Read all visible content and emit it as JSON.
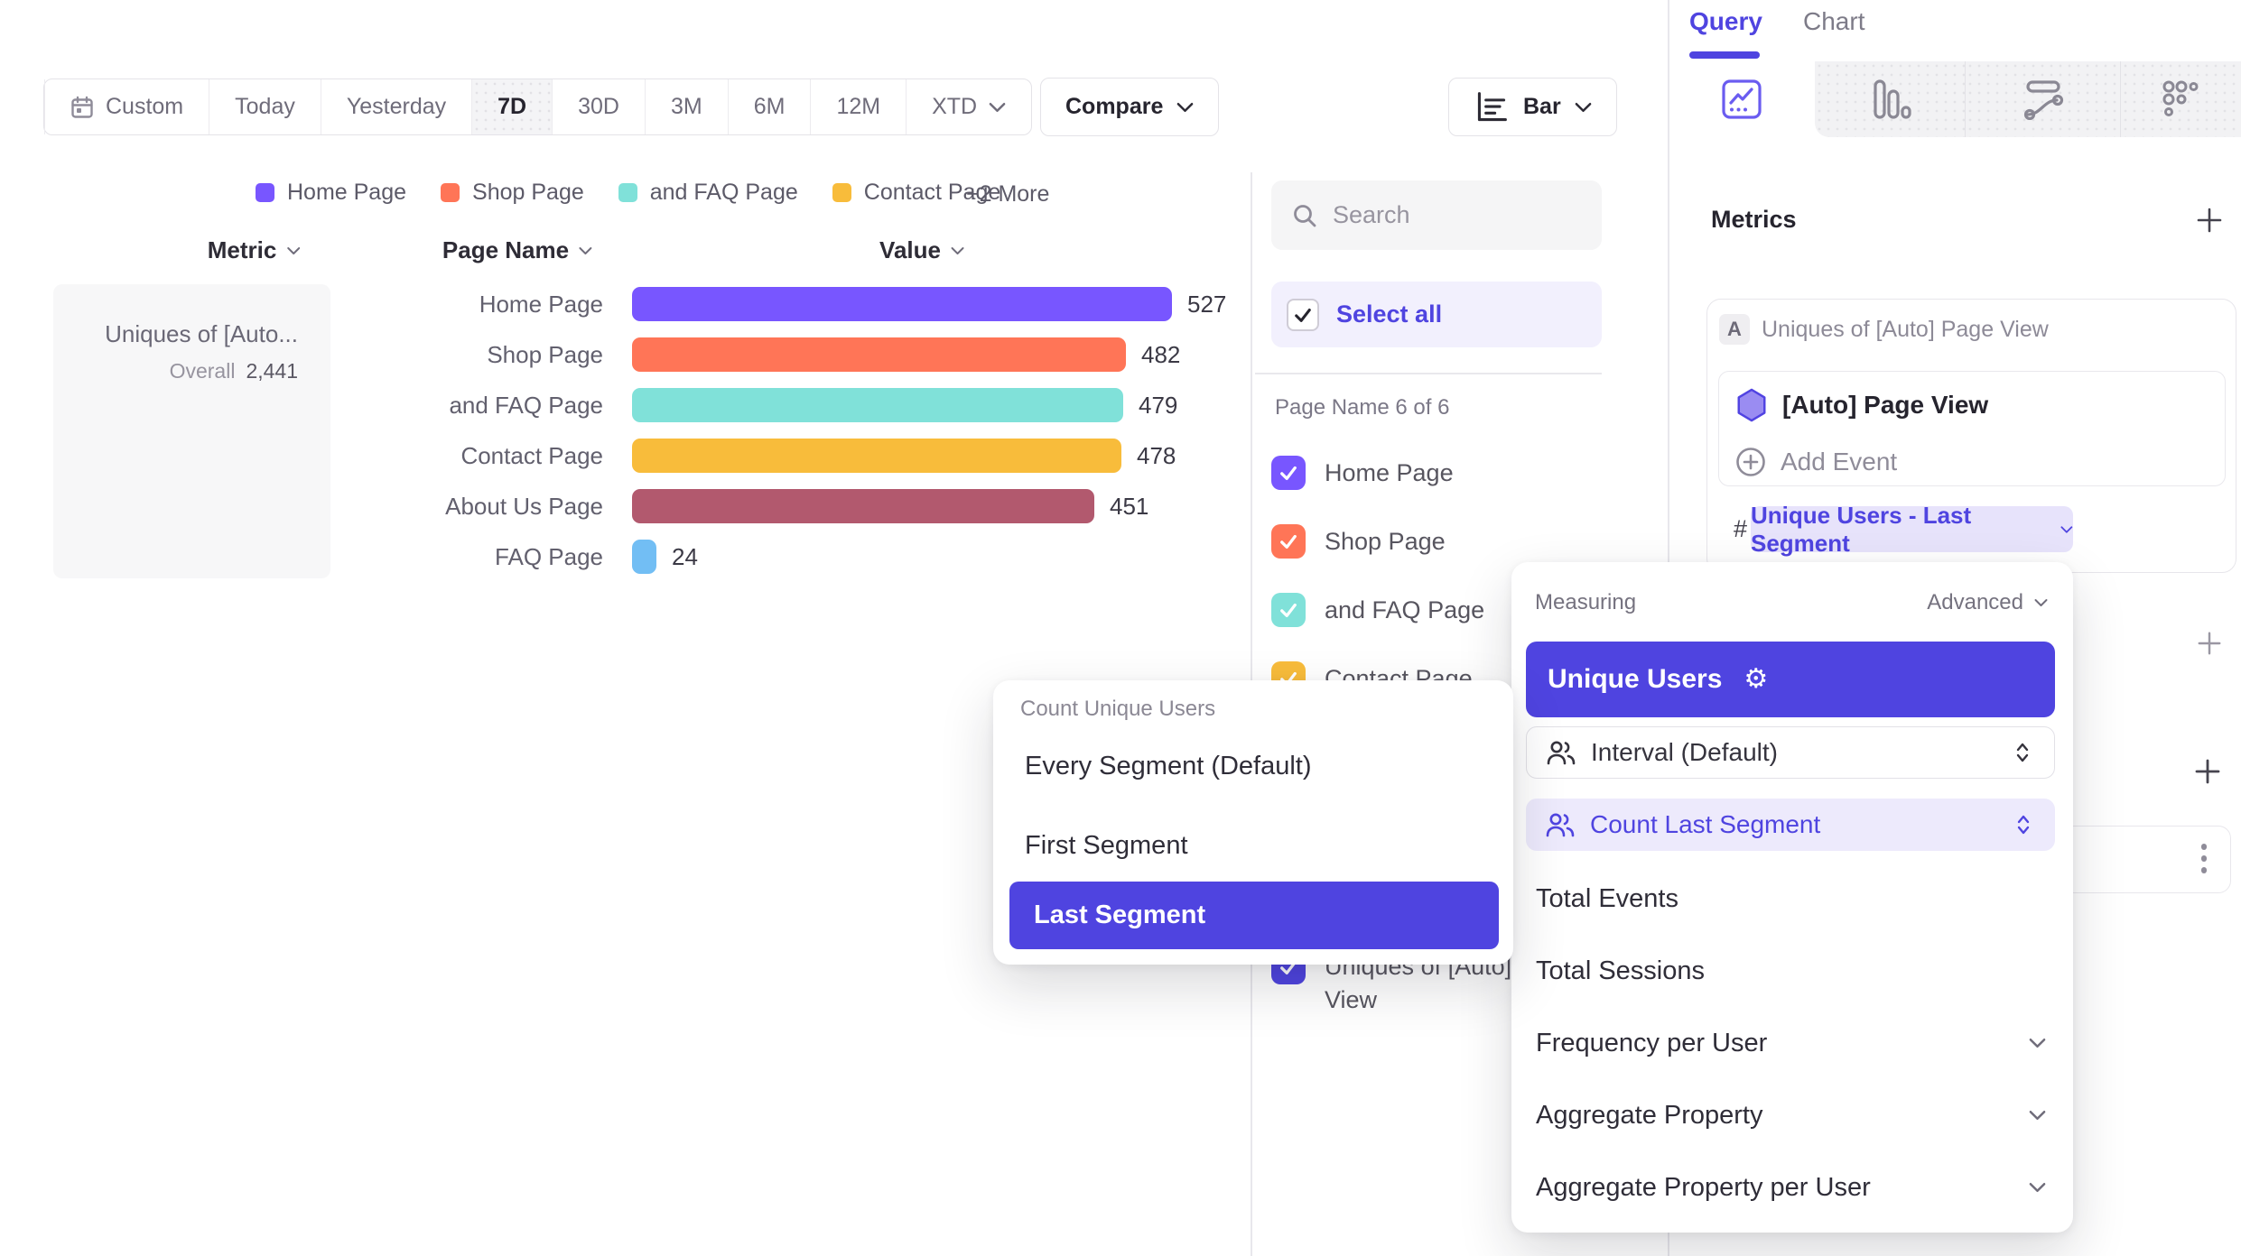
{
  "toolbar": {
    "date_ranges": [
      {
        "label": "Custom",
        "icon": "calendar",
        "active": false
      },
      {
        "label": "Today",
        "active": false
      },
      {
        "label": "Yesterday",
        "active": false
      },
      {
        "label": "7D",
        "active": true
      },
      {
        "label": "30D",
        "active": false
      },
      {
        "label": "3M",
        "active": false
      },
      {
        "label": "6M",
        "active": false
      },
      {
        "label": "12M",
        "active": false
      },
      {
        "label": "XTD",
        "chevron": true,
        "active": false
      }
    ],
    "compare_label": "Compare",
    "chart_type_button_label": "Bar"
  },
  "legend": {
    "items": [
      {
        "label": "Home Page",
        "color": "#7856FF"
      },
      {
        "label": "Shop Page",
        "color": "#FF7557"
      },
      {
        "label": "and FAQ Page",
        "color": "#80E1D9"
      },
      {
        "label": "Contact Page",
        "color": "#F8BC3B"
      }
    ],
    "more_label": "+2 More"
  },
  "table": {
    "columns": {
      "metric": "Metric",
      "page_name": "Page Name",
      "value": "Value"
    },
    "metric_cell": {
      "title": "Uniques of [Auto...",
      "overall_label": "Overall",
      "overall_value": "2,441"
    }
  },
  "chart_data": {
    "type": "bar",
    "orientation": "horizontal",
    "title": "",
    "categories": [
      "Home Page",
      "Shop Page",
      "and FAQ Page",
      "Contact Page",
      "About Us Page",
      "FAQ Page"
    ],
    "values": [
      527,
      482,
      479,
      478,
      451,
      24
    ],
    "colors": [
      "#7856FF",
      "#FF7557",
      "#80E1D9",
      "#F8BC3B",
      "#B2596E",
      "#72BEF4"
    ],
    "metric": "Uniques of [Auto] Page View",
    "overall_total": "2,441",
    "value_labels_shown": true,
    "grid": false,
    "legend_position": "top"
  },
  "filter_panel": {
    "search_placeholder": "Search",
    "select_all_label": "Select all",
    "group_label": "Page Name 6 of 6",
    "items": [
      {
        "label": "Home Page",
        "color": "#7856FF"
      },
      {
        "label": "Shop Page",
        "color": "#FF7557"
      },
      {
        "label": "and FAQ Page",
        "color": "#80E1D9"
      },
      {
        "label": "Contact Page",
        "color": "#F8BC3B"
      }
    ],
    "metric_item": {
      "label": "Uniques of [Auto] Page View",
      "color": "#4F44E0"
    }
  },
  "query_panel": {
    "tabs": [
      {
        "label": "Query",
        "active": true
      },
      {
        "label": "Chart",
        "active": false
      }
    ],
    "metrics_header": "Metrics"
  },
  "event_card": {
    "badge": "A",
    "title": "Uniques of [Auto] Page View",
    "event_name": "[Auto] Page View",
    "add_event_label": "Add Event",
    "hash_symbol": "#",
    "measurement_label": "Unique Users - Last Segment"
  },
  "count_popup": {
    "title": "Count Unique Users",
    "options": [
      {
        "label": "Every Segment (Default)",
        "selected": false
      },
      {
        "label": "First Segment",
        "selected": false
      },
      {
        "label": "Last Segment",
        "selected": true
      }
    ]
  },
  "measuring_popup": {
    "title": "Measuring",
    "advanced_label": "Advanced",
    "selected_measure": "Unique Users",
    "rows": [
      {
        "label": "Interval (Default)",
        "highlighted": false
      },
      {
        "label": "Count Last Segment",
        "highlighted": true
      }
    ],
    "options": [
      {
        "label": "Total Events",
        "chevron": false
      },
      {
        "label": "Total Sessions",
        "chevron": false
      },
      {
        "label": "Frequency per User",
        "chevron": true
      },
      {
        "label": "Aggregate Property",
        "chevron": true
      },
      {
        "label": "Aggregate Property per User",
        "chevron": true
      }
    ]
  },
  "colors": {
    "accent": "#4F44E0",
    "accent_light": "#EDEAFC",
    "text_dark": "#26242E",
    "text_gray": "#7D7B88"
  }
}
